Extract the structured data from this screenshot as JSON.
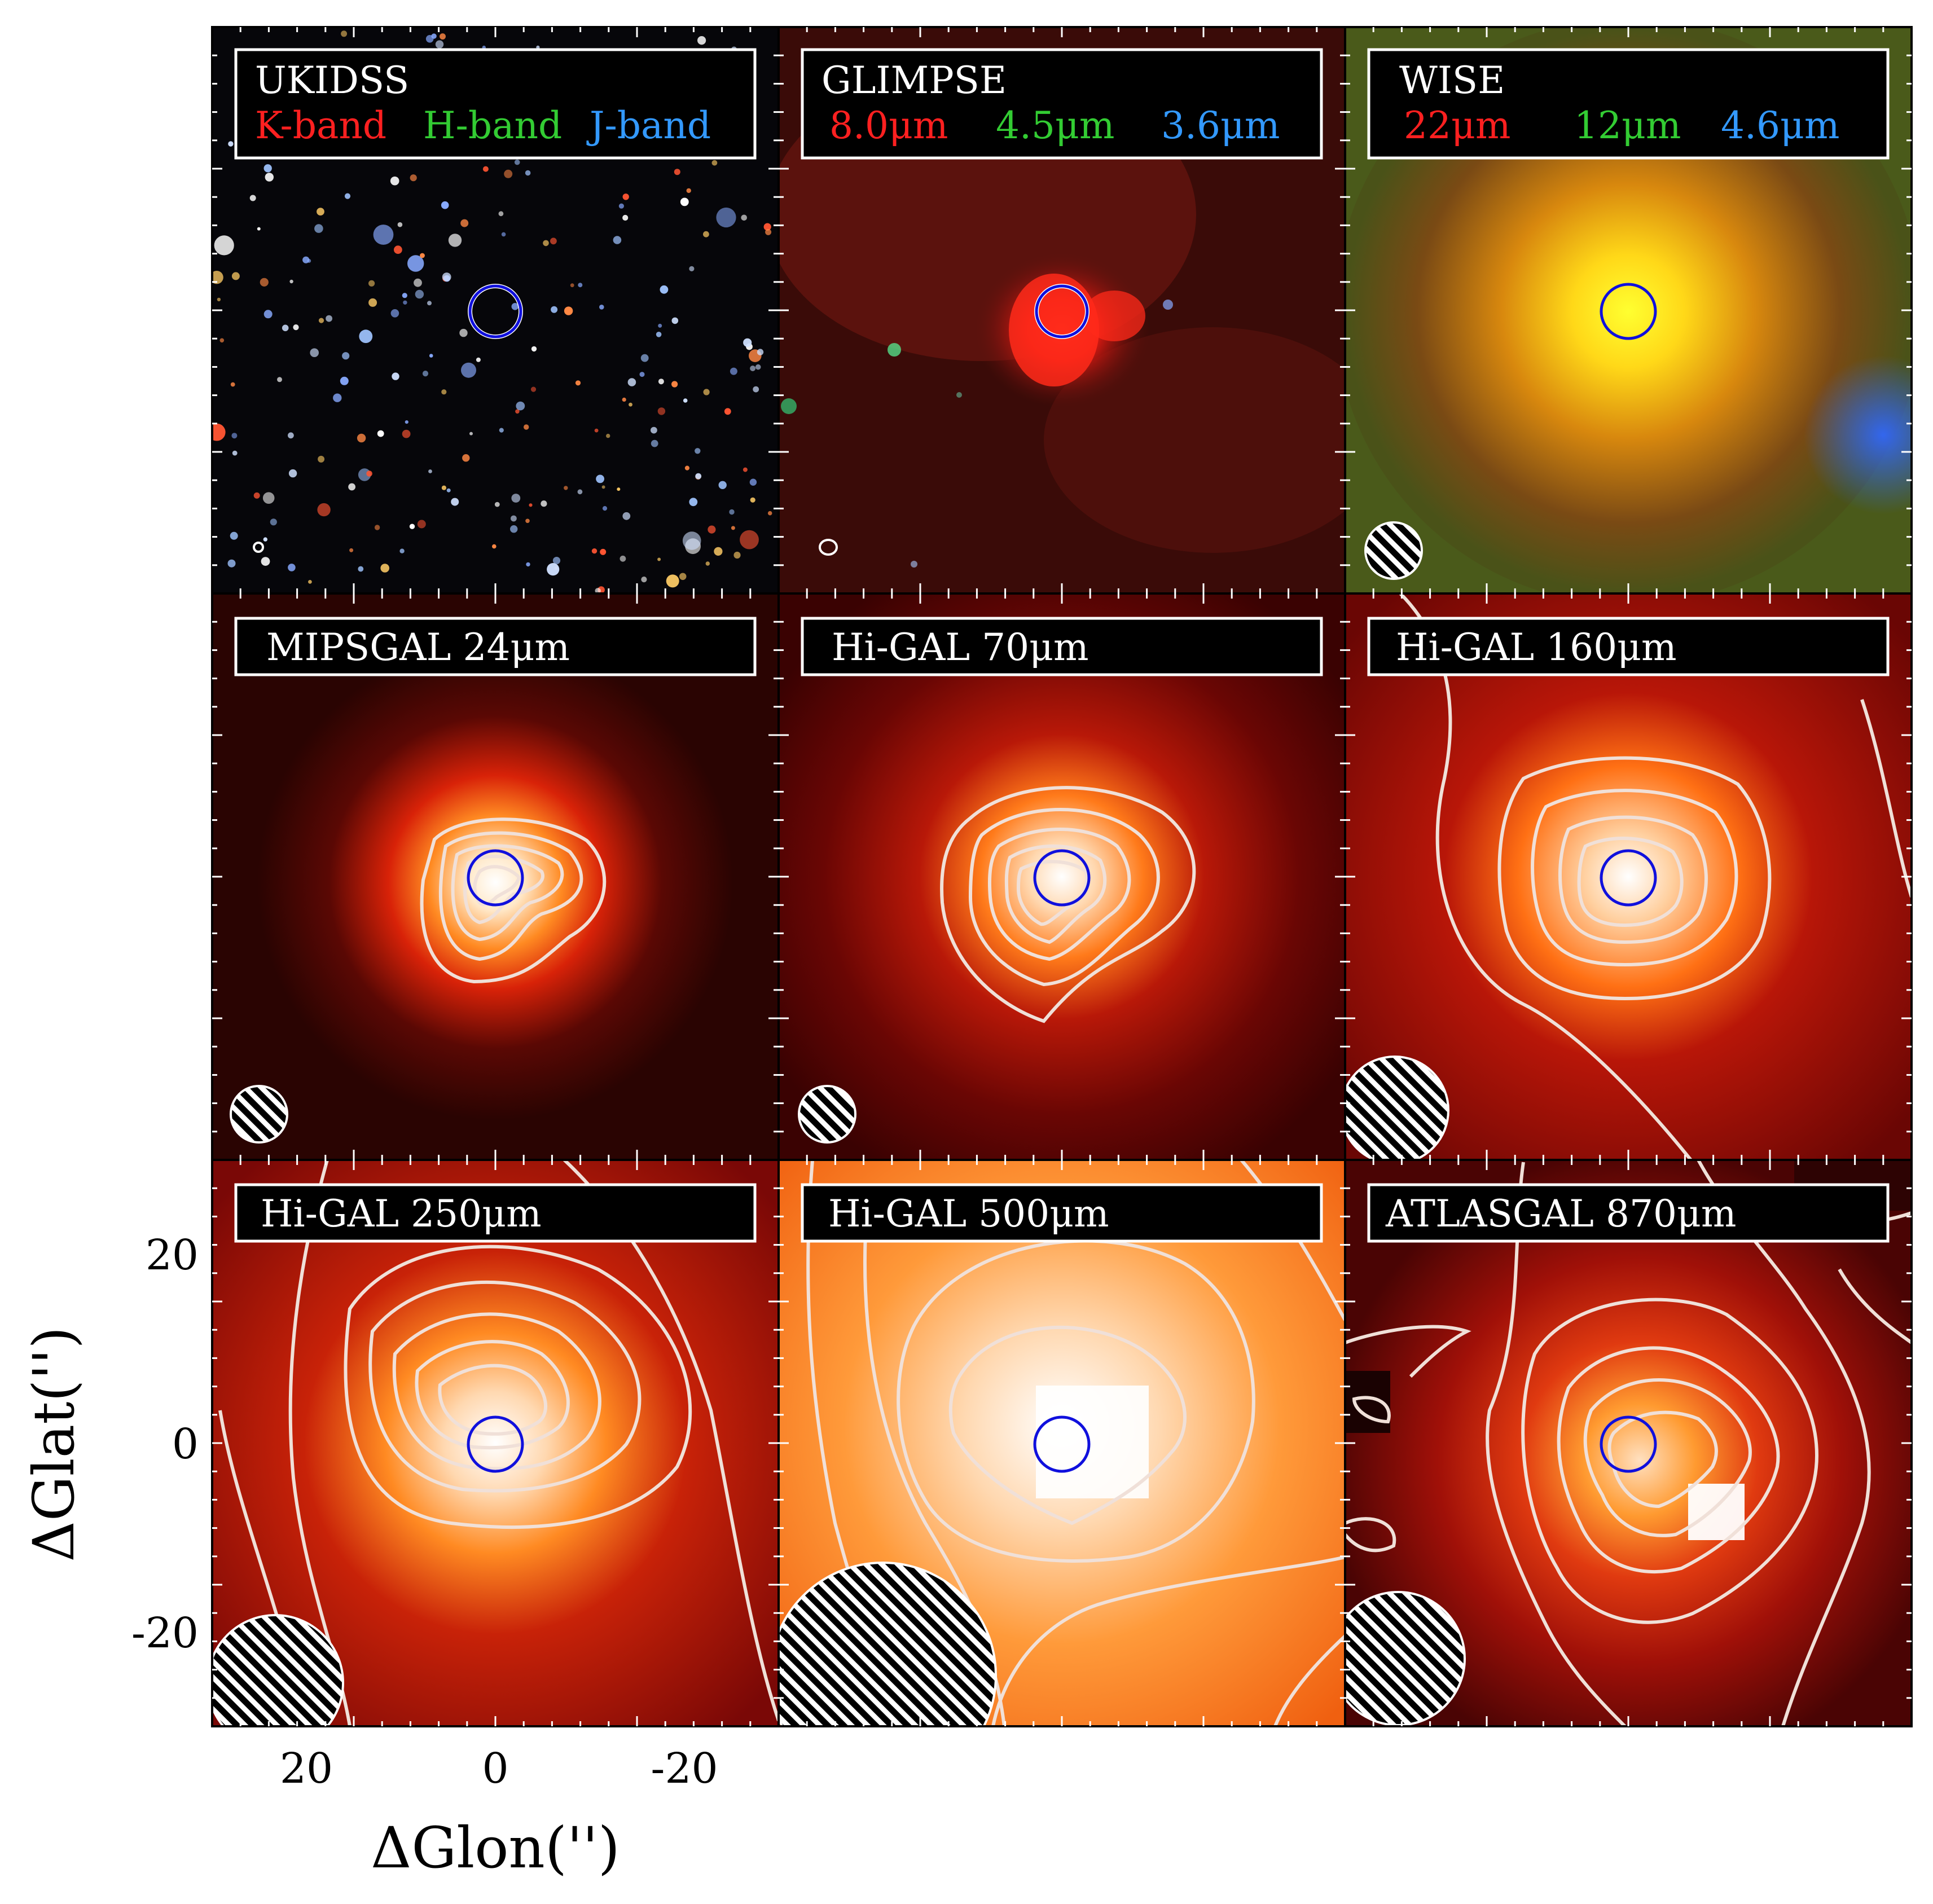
{
  "axes": {
    "xlabel": "ΔGlon('')",
    "ylabel": "ΔGlat('')",
    "x_ticks": [
      "20",
      "0",
      "-20"
    ],
    "y_ticks": [
      "20",
      "0",
      "-20"
    ]
  },
  "panels": [
    {
      "id": "ukidss",
      "title": "UKIDSS",
      "bands": [
        {
          "text": "K-band",
          "color": "#ff2020"
        },
        {
          "text": "H-band",
          "color": "#33cc33"
        },
        {
          "text": "J-band",
          "color": "#3399ff"
        }
      ]
    },
    {
      "id": "glimpse",
      "title": "GLIMPSE",
      "bands": [
        {
          "text": "8.0μm",
          "color": "#ff2020"
        },
        {
          "text": "4.5μm",
          "color": "#33cc33"
        },
        {
          "text": "3.6μm",
          "color": "#3399ff"
        }
      ]
    },
    {
      "id": "wise",
      "title": "WISE",
      "bands": [
        {
          "text": "22μm",
          "color": "#ff2020"
        },
        {
          "text": "12μm",
          "color": "#33cc33"
        },
        {
          "text": "4.6μm",
          "color": "#3399ff"
        }
      ]
    },
    {
      "id": "mipsgal",
      "title": "MIPSGAL 24μm"
    },
    {
      "id": "higal70",
      "title": "Hi-GAL 70μm"
    },
    {
      "id": "higal160",
      "title": "Hi-GAL 160μm"
    },
    {
      "id": "higal250",
      "title": "Hi-GAL 250μm"
    },
    {
      "id": "higal500",
      "title": "Hi-GAL 500μm"
    },
    {
      "id": "atlasgal",
      "title": "ATLASGAL 870μm"
    }
  ],
  "colors": {
    "marker_circle": "#1010dd",
    "contour": "#f0e0d8",
    "label_box_bg": "#000000",
    "label_text": "#ffffff"
  }
}
